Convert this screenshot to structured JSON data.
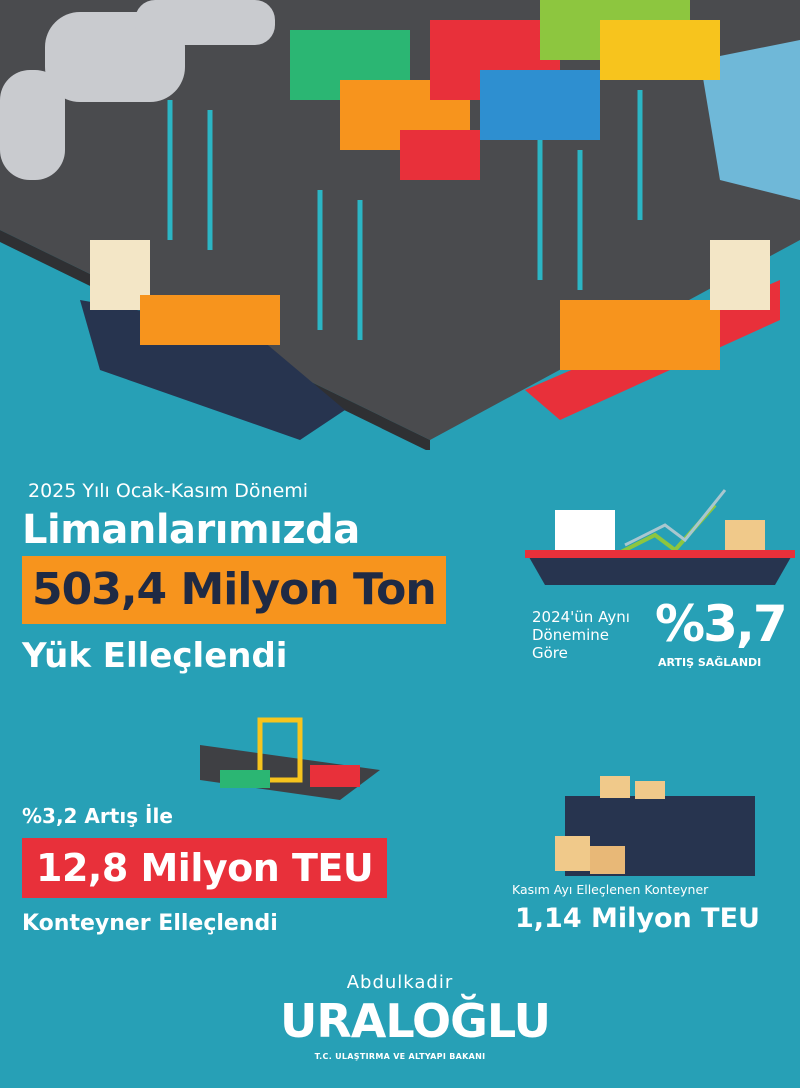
{
  "headline": {
    "subtitle": "2025 Yılı Ocak-Kasım Dönemi",
    "line1": "Limanlarımızda",
    "highlight": "503,4 Milyon Ton",
    "line3": "Yük Elleçlendi"
  },
  "comparison": {
    "text_lines": [
      "2024'ün Aynı",
      "Dönemine",
      "Göre"
    ],
    "percent": "%3,7",
    "label": "ARTIŞ SAĞLANDI"
  },
  "container": {
    "increase": "%3,2 Artış İle",
    "highlight": "12,8 Milyon TEU",
    "line3": "Konteyner Elleçlendi"
  },
  "november": {
    "label": "Kasım Ayı Elleçlenen Konteyner",
    "value": "1,14 Milyon TEU"
  },
  "logo": {
    "first_name": "Abdulkadir",
    "last_name": "URALOĞLU",
    "title": "T.C. ULAŞTIRMA VE ALTYAPI BAKANI"
  },
  "colors": {
    "background": "#27a0b6",
    "orange": "#f7941d",
    "red": "#e8303a",
    "navy": "#1f2a44"
  }
}
